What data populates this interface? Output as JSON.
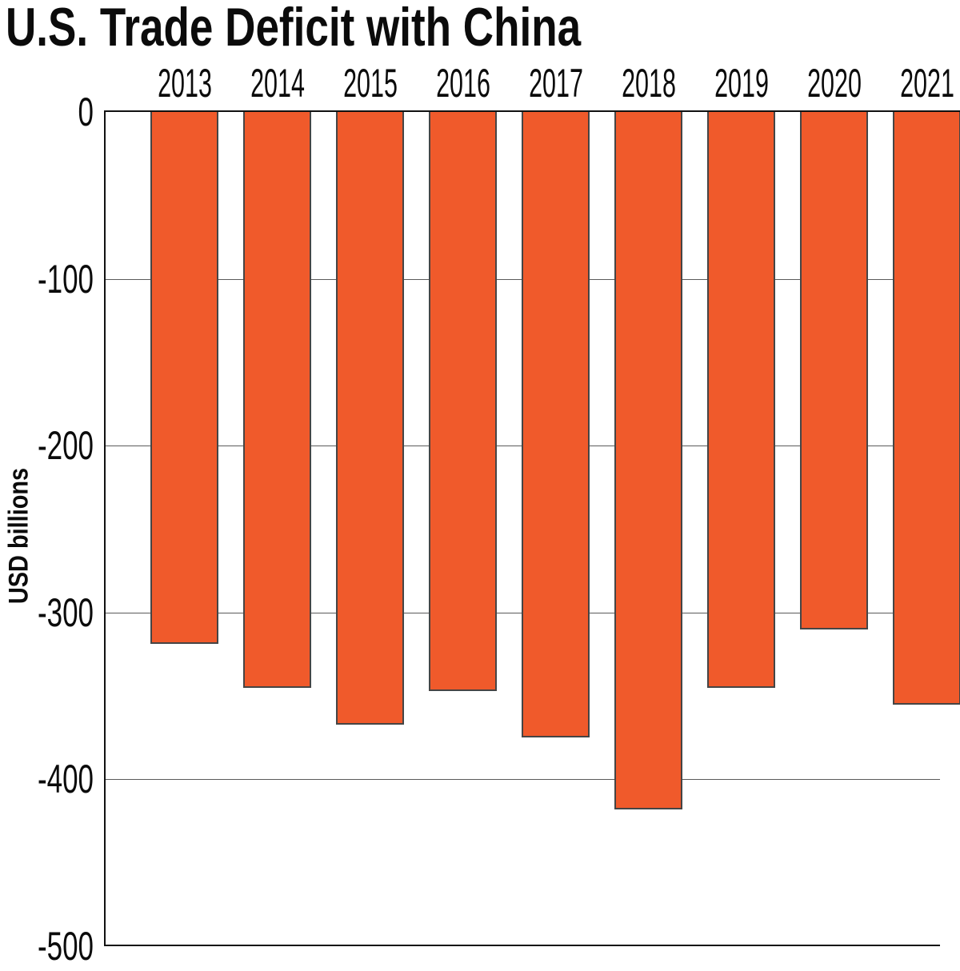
{
  "page": {
    "background_color": "#ffffff",
    "text_color": "#0b0b0b"
  },
  "chart_data": {
    "type": "bar",
    "title": "U.S. Trade Deficit with China",
    "ylabel": "USD billions",
    "xlabel": "",
    "categories": [
      "2013",
      "2014",
      "2015",
      "2016",
      "2017",
      "2018",
      "2019",
      "2020",
      "2021"
    ],
    "values": [
      -319,
      -345,
      -367,
      -347,
      -375,
      -418,
      -345,
      -310,
      -355
    ],
    "unit": "USD billions",
    "ylim": [
      -500,
      0
    ],
    "yticks": [
      0,
      -100,
      -200,
      -300,
      -400,
      -500
    ],
    "x_axis_position": "top",
    "grid": true,
    "legend": false,
    "bar_color": "#F05A2B",
    "bar_border_color": "#454545",
    "axis_color": "#111111",
    "gridline_color": "#5a5a5a"
  }
}
